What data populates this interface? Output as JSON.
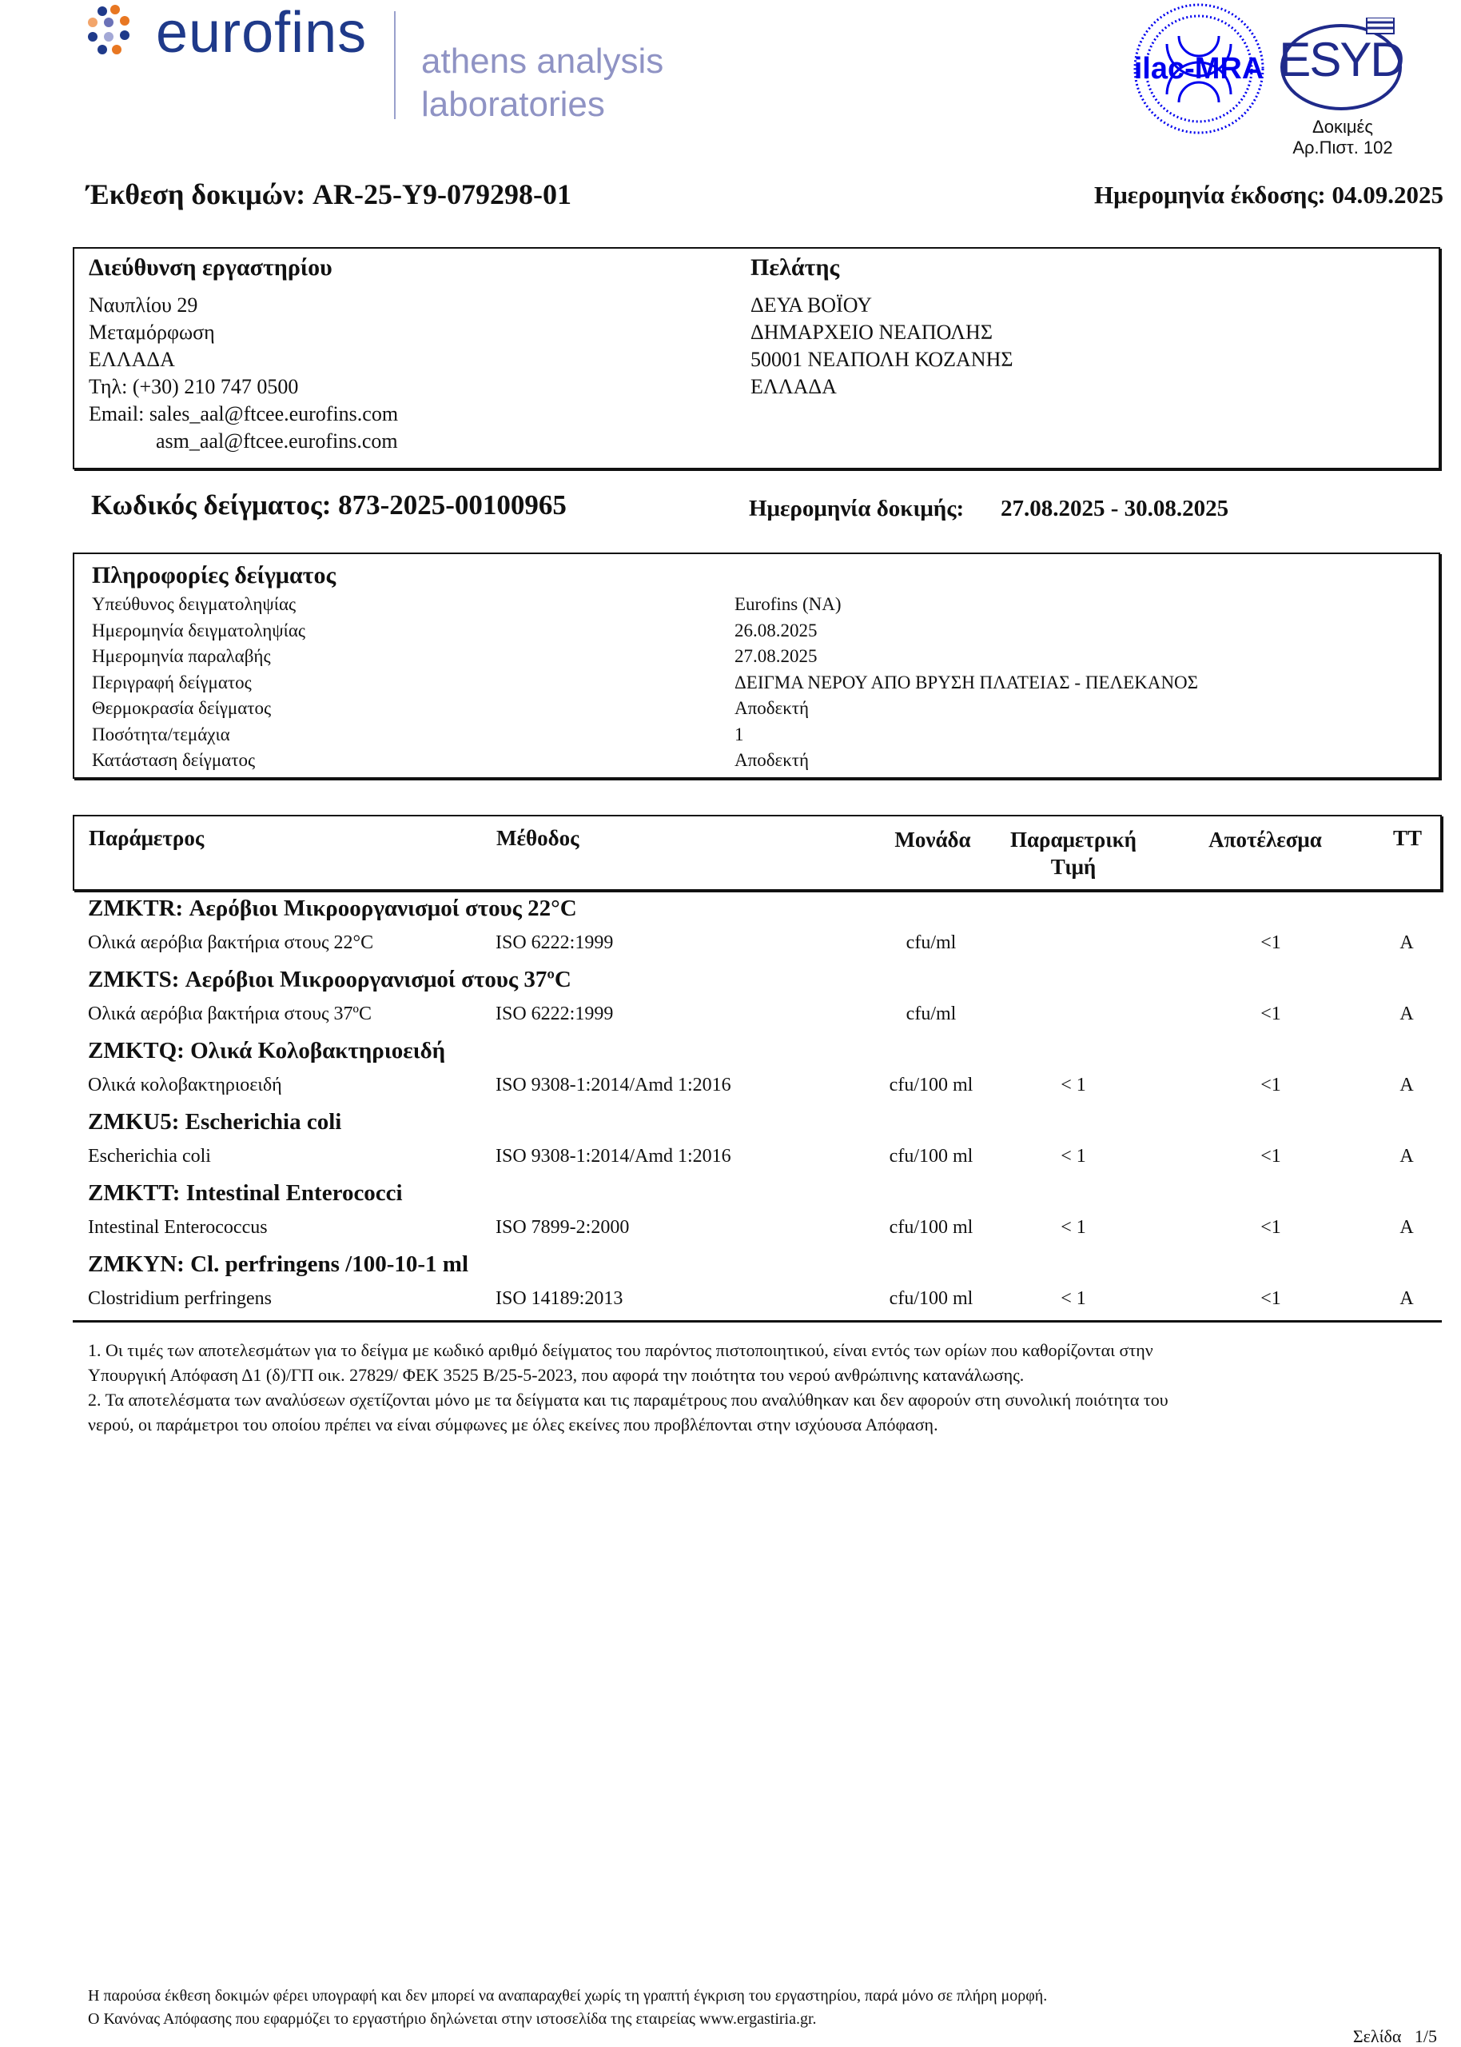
{
  "header": {
    "brand": "eurofins",
    "subbrand_line1": "athens analysis",
    "subbrand_line2": "laboratories",
    "accreditation_logo1": "ilac-MRA",
    "accreditation_logo2": "ESYD",
    "accreditation_line1": "Δοκιμές",
    "accreditation_line2": "Αρ.Πιστ. 102",
    "colors": {
      "brand_blue": "#1f3a8a",
      "brand_orange": "#e87722",
      "sub_gray": "#8f93c4",
      "ilac_blue": "#0000ee"
    }
  },
  "report": {
    "title": "Έκθεση δοκιμών: AR-25-Y9-079298-01",
    "issue_date": "Ημερομηνία έκδοσης: 04.09.2025"
  },
  "lab": {
    "heading": "Διεύθυνση εργαστηρίου",
    "lines": [
      "Ναυπλίου 29",
      "Μεταμόρφωση",
      "ΕΛΛΑΔΑ",
      "Τηλ: (+30) 210 747 0500",
      "Email: sales_aal@ftcee.eurofins.com",
      "asm_aal@ftcee.eurofins.com"
    ]
  },
  "client": {
    "heading": "Πελάτης",
    "lines": [
      "ΔΕΥΑ ΒΟΪΟΥ",
      "ΔΗΜΑΡΧΕΙΟ ΝΕΑΠΟΛΗΣ",
      "50001 ΝΕΑΠΟΛΗ ΚΟΖΑΝΗΣ",
      "ΕΛΛΑΔΑ"
    ]
  },
  "sample": {
    "code": "Κωδικός δείγματος: 873-2025-00100965",
    "test_date_label": "Ημερομηνία δοκιμής:",
    "test_date": "27.08.2025 - 30.08.2025",
    "info_heading": "Πληροφορίες δείγματος",
    "info": [
      {
        "label": "Υπεύθυνος δειγματοληψίας",
        "value": "Eurofins (NA)"
      },
      {
        "label": "Ημερομηνία δειγματοληψίας",
        "value": "26.08.2025"
      },
      {
        "label": "Ημερομηνία παραλαβής",
        "value": "27.08.2025"
      },
      {
        "label": "Περιγραφή δείγματος",
        "value": "ΔΕΙΓΜΑ ΝΕΡΟΥ ΑΠΟ ΒΡΥΣΗ ΠΛΑΤΕΙΑΣ - ΠΕΛΕΚΑΝΟΣ"
      },
      {
        "label": "Θερμοκρασία δείγματος",
        "value": "Αποδεκτή"
      },
      {
        "label": "Ποσότητα/τεμάχια",
        "value": "1"
      },
      {
        "label": "Κατάσταση δείγματος",
        "value": "Αποδεκτή"
      }
    ]
  },
  "results": {
    "columns": {
      "param": "Παράμετρος",
      "method": "Μέθοδος",
      "unit": "Μονάδα",
      "limit1": "Παραμετρική",
      "limit2": "Τιμή",
      "result": "Αποτέλεσμα",
      "tt": "ΤΤ"
    },
    "groups": [
      {
        "title": "ZMKTR: Αερόβιοι Μικροοργανισμοί στους 22°C",
        "param": "Ολικά αερόβια βακτήρια στους 22°C",
        "method": "ISO 6222:1999",
        "unit": "cfu/ml",
        "limit": "",
        "result": "<1",
        "tt": "A"
      },
      {
        "title": "ZMKTS: Αερόβιοι Μικροοργανισμοί στους 37ºC",
        "param": "Ολικά αερόβια βακτήρια στους 37ºC",
        "method": "ISO 6222:1999",
        "unit": "cfu/ml",
        "limit": "",
        "result": "<1",
        "tt": "A"
      },
      {
        "title": "ZMKTQ: Ολικά Κολοβακτηριοειδή",
        "param": "Ολικά κολοβακτηριοειδή",
        "method": "ISO 9308-1:2014/Amd 1:2016",
        "unit": "cfu/100 ml",
        "limit": "< 1",
        "result": "<1",
        "tt": "A"
      },
      {
        "title": "ZMKU5: Escherichia coli",
        "param": "Escherichia coli",
        "method": "ISO 9308-1:2014/Amd 1:2016",
        "unit": "cfu/100 ml",
        "limit": "< 1",
        "result": "<1",
        "tt": "A"
      },
      {
        "title": "ZMKTT: Intestinal Enterococci",
        "param": "Intestinal Enterococcus",
        "method": "ISO 7899-2:2000",
        "unit": "cfu/100 ml",
        "limit": "< 1",
        "result": "<1",
        "tt": "A"
      },
      {
        "title": "ZMKYN: Cl. perfringens /100-10-1 ml",
        "param": "Clostridium perfringens",
        "method": "ISO 14189:2013",
        "unit": "cfu/100 ml",
        "limit": "< 1",
        "result": "<1",
        "tt": "A"
      }
    ]
  },
  "notes": [
    "1. Οι τιμές των αποτελεσμάτων για το δείγμα με κωδικό αριθμό δείγματος του παρόντος πιστοποιητικού, είναι εντός των ορίων που καθορίζονται στην",
    "Υπουργική Απόφαση Δ1 (δ)/ΓΠ οικ. 27829/ ΦΕΚ 3525 Β/25-5-2023, που αφορά την ποιότητα του νερού ανθρώπινης κατανάλωσης.",
    "2. Τα αποτελέσματα των αναλύσεων σχετίζονται μόνο με τα δείγματα και τις παραμέτρους που αναλύθηκαν και δεν αφορούν στη συνολική ποιότητα του",
    "νερού, οι παράμετροι του οποίου πρέπει να είναι σύμφωνες με όλες εκείνες που προβλέπονται στην ισχύουσα Απόφαση."
  ],
  "footer": {
    "line1": "Η παρούσα έκθεση δοκιμών φέρει υπογραφή και δεν μπορεί να αναπαραχθεί χωρίς τη γραπτή έγκριση του εργαστηρίου, παρά μόνο σε πλήρη μορφή.",
    "line2": "Ο Κανόνας Απόφασης που εφαρμόζει το εργαστήριο δηλώνεται στην ιστοσελίδα της εταιρείας www.ergastiria.gr.",
    "page": "Σελίδα   1/5"
  }
}
